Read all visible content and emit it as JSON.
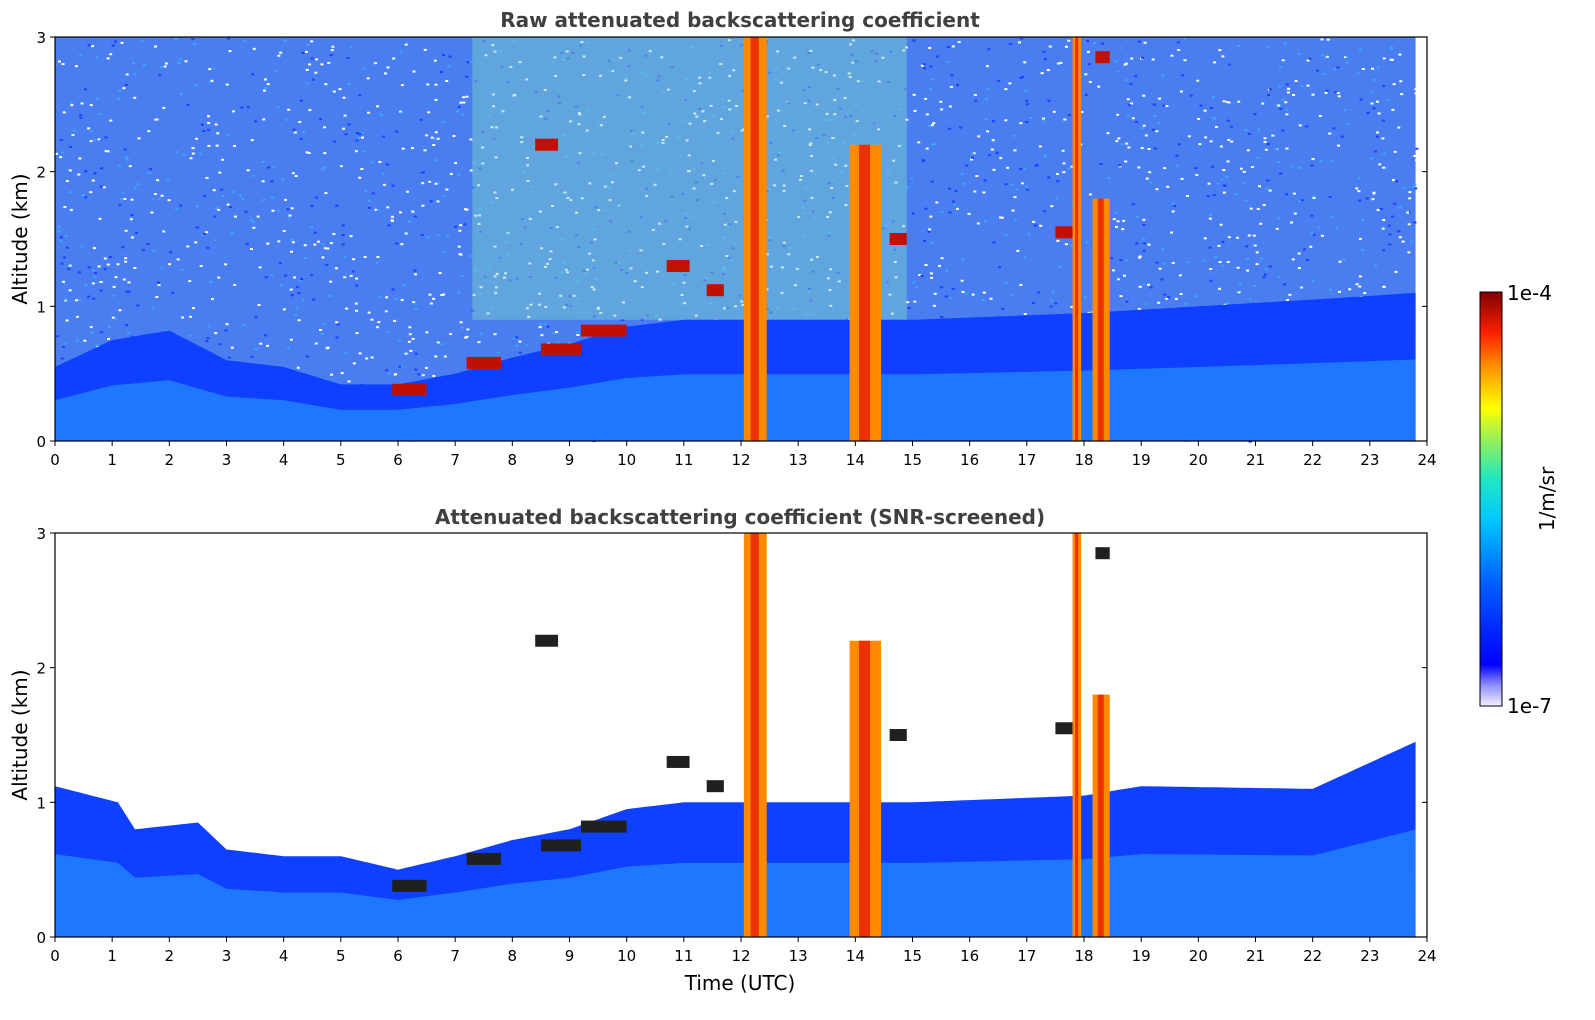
{
  "colorbar": {
    "max_label": "1e-4",
    "min_label": "1e-7",
    "unit_label": "1/m/sr",
    "max_value": 0.0001,
    "min_value": 1e-07,
    "scale": "log",
    "colormap": "jet"
  },
  "chart_data": [
    {
      "type": "heatmap",
      "title": "Raw attenuated backscattering coefficient",
      "xlabel": "",
      "ylabel": "Altitude (km)",
      "xlim": [
        0,
        24
      ],
      "ylim": [
        0,
        3
      ],
      "x_ticks": [
        "0",
        "1",
        "2",
        "3",
        "4",
        "5",
        "6",
        "7",
        "8",
        "9",
        "10",
        "11",
        "12",
        "13",
        "14",
        "15",
        "16",
        "17",
        "18",
        "19",
        "20",
        "21",
        "22",
        "23",
        "24"
      ],
      "y_ticks": [
        "0",
        "1",
        "2",
        "3"
      ],
      "screened": false,
      "boundary_layer_top_km": [
        {
          "t": 0,
          "z": 0.55
        },
        {
          "t": 1,
          "z": 0.75
        },
        {
          "t": 2,
          "z": 0.82
        },
        {
          "t": 3,
          "z": 0.6
        },
        {
          "t": 4,
          "z": 0.55
        },
        {
          "t": 5,
          "z": 0.42
        },
        {
          "t": 6,
          "z": 0.42
        },
        {
          "t": 7,
          "z": 0.5
        },
        {
          "t": 8,
          "z": 0.62
        },
        {
          "t": 9,
          "z": 0.72
        },
        {
          "t": 10,
          "z": 0.85
        },
        {
          "t": 11,
          "z": 0.9
        },
        {
          "t": 12,
          "z": 0.9
        },
        {
          "t": 15,
          "z": 0.9
        },
        {
          "t": 18,
          "z": 0.95
        },
        {
          "t": 20,
          "z": 1.0
        },
        {
          "t": 22,
          "z": 1.05
        },
        {
          "t": 23.8,
          "z": 1.1
        }
      ],
      "precipitation_columns": [
        {
          "start": 12.05,
          "end": 12.45,
          "top_km": 3.0
        },
        {
          "start": 13.9,
          "end": 14.45,
          "top_km": 2.2
        },
        {
          "start": 17.8,
          "end": 17.95,
          "top_km": 3.0
        },
        {
          "start": 18.15,
          "end": 18.45,
          "top_km": 1.8
        }
      ],
      "cloud_features": [
        {
          "t_start": 5.9,
          "t_end": 6.5,
          "z_km": 0.38
        },
        {
          "t_start": 7.2,
          "t_end": 7.8,
          "z_km": 0.58
        },
        {
          "t_start": 8.5,
          "t_end": 9.2,
          "z_km": 0.68
        },
        {
          "t_start": 9.2,
          "t_end": 10.0,
          "z_km": 0.82
        },
        {
          "t_start": 8.4,
          "t_end": 8.8,
          "z_km": 2.2
        },
        {
          "t_start": 10.7,
          "t_end": 11.1,
          "z_km": 1.3
        },
        {
          "t_start": 11.4,
          "t_end": 11.7,
          "z_km": 1.12
        },
        {
          "t_start": 14.6,
          "t_end": 14.9,
          "z_km": 1.5
        },
        {
          "t_start": 17.5,
          "t_end": 17.8,
          "z_km": 1.55
        },
        {
          "t_start": 18.2,
          "t_end": 18.45,
          "z_km": 2.85
        }
      ],
      "elevated_noise_band": {
        "t_start": 7.3,
        "t_end": 14.9,
        "note_level": "high"
      }
    },
    {
      "type": "heatmap",
      "title": "Attenuated backscattering coefficient (SNR-screened)",
      "xlabel": "Time (UTC)",
      "ylabel": "Altitude (km)",
      "xlim": [
        0,
        24
      ],
      "ylim": [
        0,
        3
      ],
      "x_ticks": [
        "0",
        "1",
        "2",
        "3",
        "4",
        "5",
        "6",
        "7",
        "8",
        "9",
        "10",
        "11",
        "12",
        "13",
        "14",
        "15",
        "16",
        "17",
        "18",
        "19",
        "20",
        "21",
        "22",
        "23",
        "24"
      ],
      "y_ticks": [
        "0",
        "1",
        "2",
        "3"
      ],
      "screened": true,
      "screened_top_km": [
        {
          "t": 0,
          "z": 1.12
        },
        {
          "t": 1.1,
          "z": 1.0
        },
        {
          "t": 1.4,
          "z": 0.8
        },
        {
          "t": 2.5,
          "z": 0.85
        },
        {
          "t": 3.0,
          "z": 0.65
        },
        {
          "t": 4,
          "z": 0.6
        },
        {
          "t": 5,
          "z": 0.6
        },
        {
          "t": 6,
          "z": 0.5
        },
        {
          "t": 7,
          "z": 0.6
        },
        {
          "t": 8,
          "z": 0.72
        },
        {
          "t": 9,
          "z": 0.8
        },
        {
          "t": 10,
          "z": 0.95
        },
        {
          "t": 11,
          "z": 1.0
        },
        {
          "t": 12,
          "z": 1.0
        },
        {
          "t": 15,
          "z": 1.0
        },
        {
          "t": 18,
          "z": 1.05
        },
        {
          "t": 19,
          "z": 1.12
        },
        {
          "t": 22,
          "z": 1.1
        },
        {
          "t": 23.8,
          "z": 1.45
        }
      ]
    }
  ]
}
